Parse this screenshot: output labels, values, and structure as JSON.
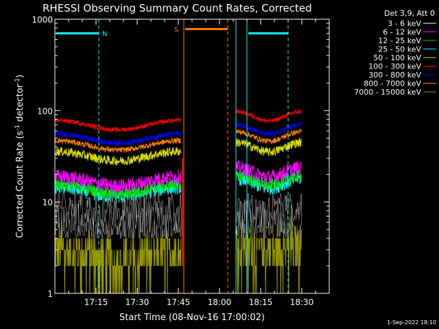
{
  "chart_data": {
    "type": "line",
    "title": "RHESSI Observing Summary Count Rates, Corrected",
    "xlabel": "Start Time (08-Nov-16 17:00:02)",
    "ylabel_main": "Corrected Count Rate (s",
    "ylabel_sup1": "-1",
    "ylabel_mid": " detector",
    "ylabel_sup2": "-1",
    "ylabel_end": ")",
    "yscale": "log",
    "ylim": [
      1,
      1000
    ],
    "xlim": [
      0,
      100
    ],
    "x_unit": "minutes after 17:00:02",
    "x_ticks": [
      {
        "t": 15,
        "label": "17:15"
      },
      {
        "t": 30,
        "label": "17:30"
      },
      {
        "t": 45,
        "label": "17:45"
      },
      {
        "t": 60,
        "label": "18:00"
      },
      {
        "t": 75,
        "label": "18:15"
      },
      {
        "t": 90,
        "label": "18:30"
      }
    ],
    "y_ticks": [
      {
        "v": 1,
        "label": "1"
      },
      {
        "v": 10,
        "label": "10"
      },
      {
        "v": 100,
        "label": "100"
      },
      {
        "v": 1000,
        "label": "1000"
      }
    ],
    "legend_header": "Det 3,9, Att 0",
    "legend_placement": "right",
    "series": [
      {
        "name": "3 - 6 keV",
        "color": "#000000",
        "level": 7,
        "noise": 0.35
      },
      {
        "name": "6 - 12 keV",
        "color": "#ff00ff",
        "level": 17,
        "noise": 0.08
      },
      {
        "name": "12 - 25 keV",
        "color": "#00dd00",
        "level": 14,
        "noise": 0.07
      },
      {
        "name": "25 - 50 keV",
        "color": "#00ffff",
        "level": 13,
        "noise": 0.08
      },
      {
        "name": "50 - 100 keV",
        "color": "#e0e000",
        "level": 32,
        "noise": 0.05
      },
      {
        "name": "100 - 300 keV",
        "color": "#ff0000",
        "level": 70,
        "noise": 0.025
      },
      {
        "name": "300 - 800 keV",
        "color": "#0000ff",
        "level": 50,
        "noise": 0.03
      },
      {
        "name": "800 - 7000 keV",
        "color": "#ff8000",
        "level": 42,
        "noise": 0.03
      },
      {
        "name": "7000 - 15000 keV",
        "color": "#999900",
        "level": 2.8,
        "noise": 0.3
      }
    ],
    "data_segments": [
      [
        0,
        46
      ],
      [
        66,
        90
      ]
    ],
    "gap_marker": {
      "t": 46.5,
      "from": 2,
      "to": 30
    },
    "attenuator_bar": [
      {
        "label": "N",
        "color": "#00ffff",
        "t0": 0,
        "t1": 16,
        "value": 700,
        "line_at": [
          0,
          16
        ],
        "dash": [
          false,
          true
        ]
      },
      {
        "label": "S",
        "color": "#ff8000",
        "t0": 47,
        "t1": 63,
        "value": 780,
        "line_at": [
          47,
          63
        ],
        "dash": [
          false,
          true
        ]
      },
      {
        "label": "",
        "color": "#00ffff",
        "t0": 70,
        "t1": 85,
        "value": 700,
        "line_at": [
          70,
          85
        ],
        "dash": [
          false,
          true
        ]
      }
    ],
    "start_line": {
      "t": 66,
      "color": "#00ffff"
    },
    "timestamp": "1-Sep-2022 18:10"
  }
}
